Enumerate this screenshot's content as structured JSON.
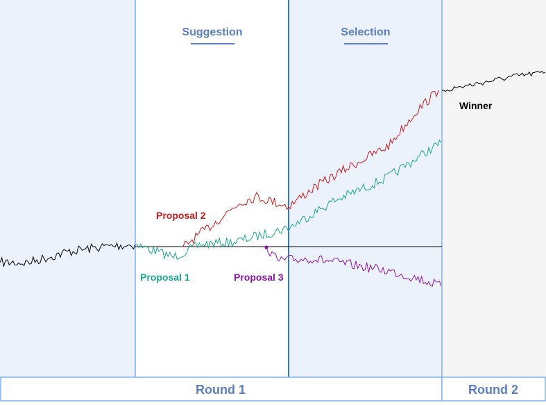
{
  "phases": {
    "suggestion": "Suggestion",
    "selection": "Selection"
  },
  "rounds": {
    "round1": "Round 1",
    "round2": "Round 2"
  },
  "proposals": {
    "p1": "Proposal 1",
    "p2": "Proposal 2",
    "p3": "Proposal 3"
  },
  "winner_label": "Winner",
  "colors": {
    "proposal_1": "#1aa68f",
    "proposal_2": "#c8191c",
    "proposal_3": "#8a14a8",
    "history": "#000000",
    "phase_text": "#5b7fc2",
    "divider": "#7fb0ec",
    "divider_strong": "#2a78d0",
    "band_blue": "#ecf2fc",
    "band_gray": "#f5f5f5"
  }
}
